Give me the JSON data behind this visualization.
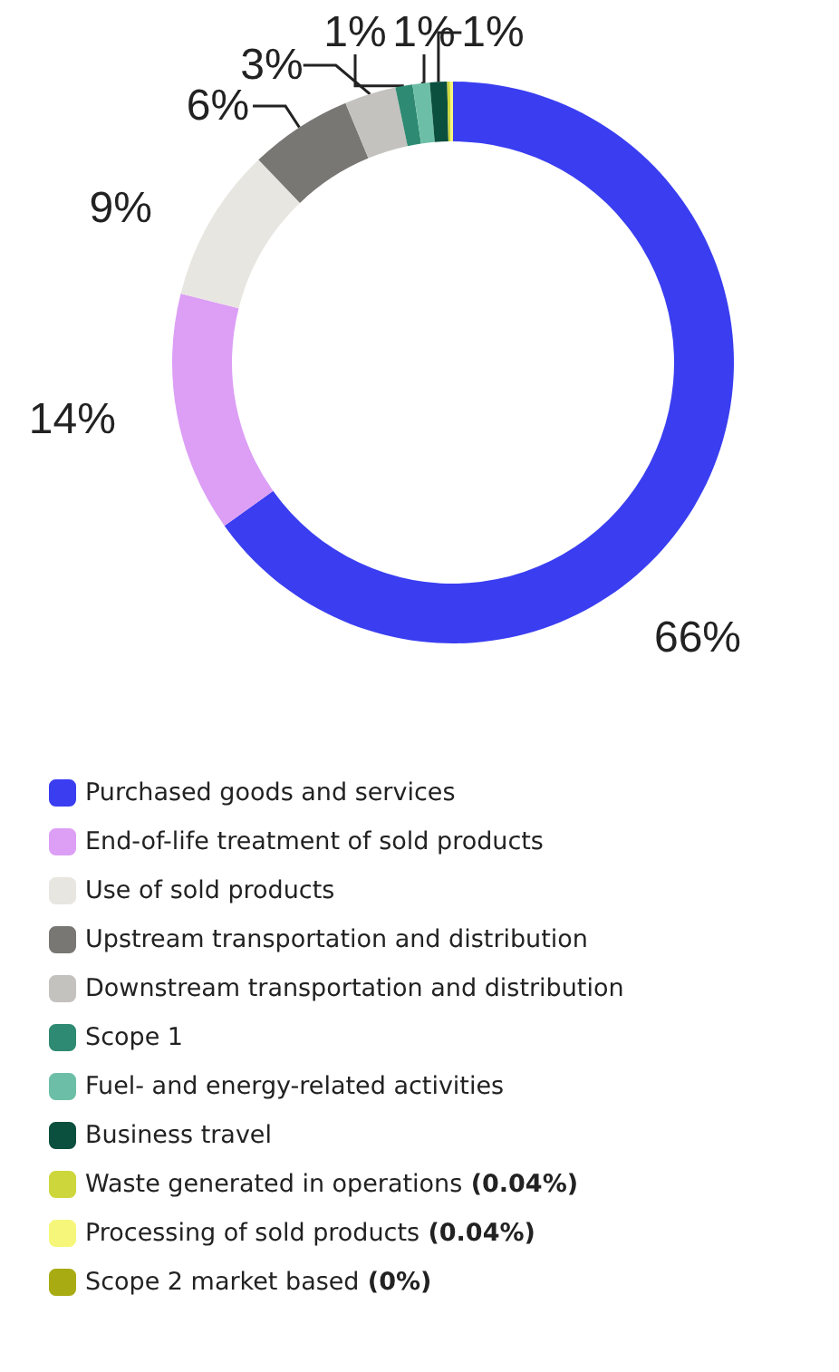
{
  "chart_data": {
    "type": "donut",
    "categories": [
      "Purchased goods and services",
      "End-of-life treatment of sold products",
      "Use of sold products",
      "Upstream transportation and distribution",
      "Downstream transportation and distribution",
      "Scope 1",
      "Fuel- and energy-related activities",
      "Business travel",
      "Waste generated in operations (0.04%)",
      "Processing of sold products (0.04%)",
      "Scope 2 market based (0%)"
    ],
    "values": [
      66,
      14,
      9,
      6,
      3,
      1,
      1,
      1,
      0.04,
      0.04,
      0
    ],
    "value_labels": [
      "66%",
      "14%",
      "9%",
      "6%",
      "3%",
      "1%",
      "1%",
      "1%",
      null,
      null,
      null
    ],
    "colors": [
      "#3a3ef0",
      "#dc9ff5",
      "#e8e6e0",
      "#787774",
      "#c4c2be",
      "#2e8a72",
      "#6cbfa6",
      "#0b4f3e",
      "#cdd63a",
      "#f6f77a",
      "#a8ab12"
    ],
    "legend": "bottom"
  }
}
